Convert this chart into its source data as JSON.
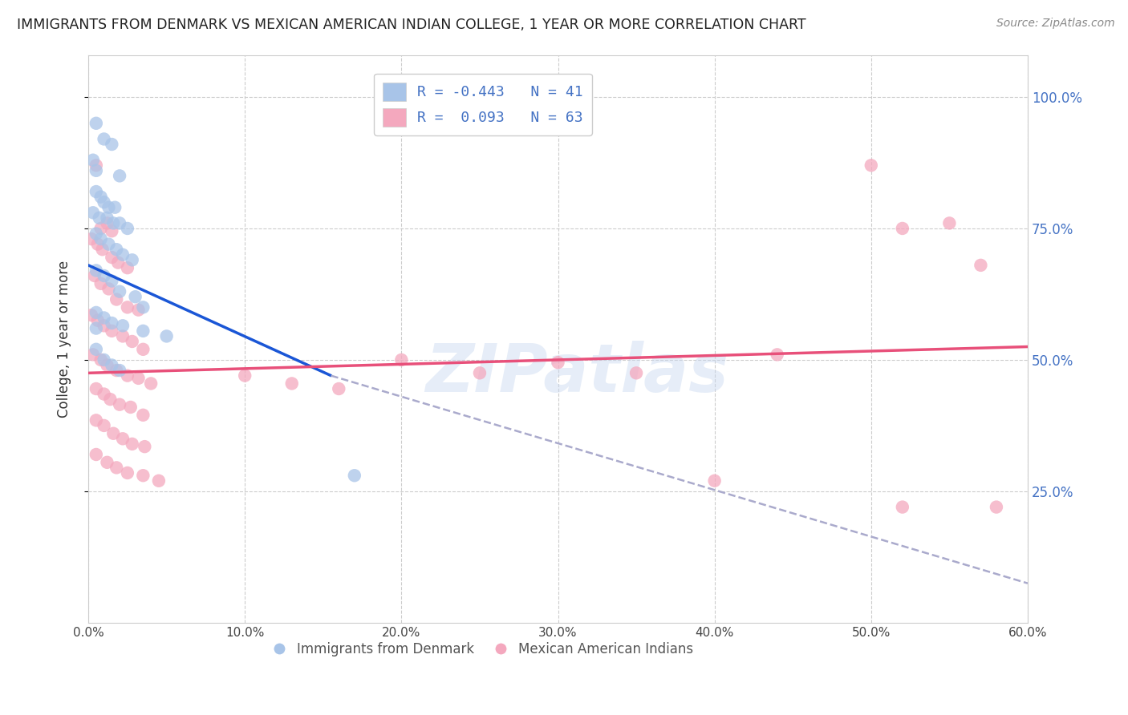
{
  "title": "IMMIGRANTS FROM DENMARK VS MEXICAN AMERICAN INDIAN COLLEGE, 1 YEAR OR MORE CORRELATION CHART",
  "source": "Source: ZipAtlas.com",
  "ylabel": "College, 1 year or more",
  "x_tick_labels": [
    "0.0%",
    "10.0%",
    "20.0%",
    "30.0%",
    "40.0%",
    "50.0%",
    "60.0%"
  ],
  "x_ticks": [
    0.0,
    0.1,
    0.2,
    0.3,
    0.4,
    0.5,
    0.6
  ],
  "y_tick_labels": [
    "100.0%",
    "75.0%",
    "50.0%",
    "25.0%"
  ],
  "y_ticks": [
    1.0,
    0.75,
    0.5,
    0.25
  ],
  "xlim": [
    0.0,
    0.6
  ],
  "ylim": [
    0.0,
    1.08
  ],
  "blue_color": "#a8c4e8",
  "pink_color": "#f4a8be",
  "blue_line_color": "#1a56d6",
  "pink_line_color": "#e8507a",
  "blue_scatter": [
    [
      0.005,
      0.95
    ],
    [
      0.01,
      0.92
    ],
    [
      0.015,
      0.91
    ],
    [
      0.003,
      0.88
    ],
    [
      0.005,
      0.86
    ],
    [
      0.02,
      0.85
    ],
    [
      0.005,
      0.82
    ],
    [
      0.008,
      0.81
    ],
    [
      0.01,
      0.8
    ],
    [
      0.013,
      0.79
    ],
    [
      0.017,
      0.79
    ],
    [
      0.003,
      0.78
    ],
    [
      0.007,
      0.77
    ],
    [
      0.012,
      0.77
    ],
    [
      0.016,
      0.76
    ],
    [
      0.02,
      0.76
    ],
    [
      0.025,
      0.75
    ],
    [
      0.005,
      0.74
    ],
    [
      0.008,
      0.73
    ],
    [
      0.013,
      0.72
    ],
    [
      0.018,
      0.71
    ],
    [
      0.022,
      0.7
    ],
    [
      0.028,
      0.69
    ],
    [
      0.005,
      0.67
    ],
    [
      0.01,
      0.66
    ],
    [
      0.015,
      0.65
    ],
    [
      0.02,
      0.63
    ],
    [
      0.03,
      0.62
    ],
    [
      0.035,
      0.6
    ],
    [
      0.005,
      0.59
    ],
    [
      0.01,
      0.58
    ],
    [
      0.015,
      0.57
    ],
    [
      0.022,
      0.565
    ],
    [
      0.035,
      0.555
    ],
    [
      0.05,
      0.545
    ],
    [
      0.005,
      0.52
    ],
    [
      0.01,
      0.5
    ],
    [
      0.015,
      0.49
    ],
    [
      0.02,
      0.48
    ],
    [
      0.17,
      0.28
    ],
    [
      0.005,
      0.56
    ]
  ],
  "pink_scatter": [
    [
      0.005,
      0.87
    ],
    [
      0.008,
      0.75
    ],
    [
      0.012,
      0.76
    ],
    [
      0.015,
      0.745
    ],
    [
      0.002,
      0.73
    ],
    [
      0.006,
      0.72
    ],
    [
      0.009,
      0.71
    ],
    [
      0.015,
      0.695
    ],
    [
      0.019,
      0.685
    ],
    [
      0.025,
      0.675
    ],
    [
      0.004,
      0.66
    ],
    [
      0.008,
      0.645
    ],
    [
      0.013,
      0.635
    ],
    [
      0.018,
      0.615
    ],
    [
      0.025,
      0.6
    ],
    [
      0.032,
      0.595
    ],
    [
      0.002,
      0.585
    ],
    [
      0.006,
      0.575
    ],
    [
      0.01,
      0.565
    ],
    [
      0.015,
      0.555
    ],
    [
      0.022,
      0.545
    ],
    [
      0.028,
      0.535
    ],
    [
      0.035,
      0.52
    ],
    [
      0.003,
      0.51
    ],
    [
      0.008,
      0.5
    ],
    [
      0.012,
      0.49
    ],
    [
      0.018,
      0.48
    ],
    [
      0.025,
      0.47
    ],
    [
      0.032,
      0.465
    ],
    [
      0.04,
      0.455
    ],
    [
      0.005,
      0.445
    ],
    [
      0.01,
      0.435
    ],
    [
      0.014,
      0.425
    ],
    [
      0.02,
      0.415
    ],
    [
      0.027,
      0.41
    ],
    [
      0.035,
      0.395
    ],
    [
      0.005,
      0.385
    ],
    [
      0.01,
      0.375
    ],
    [
      0.016,
      0.36
    ],
    [
      0.022,
      0.35
    ],
    [
      0.028,
      0.34
    ],
    [
      0.036,
      0.335
    ],
    [
      0.005,
      0.32
    ],
    [
      0.012,
      0.305
    ],
    [
      0.018,
      0.295
    ],
    [
      0.025,
      0.285
    ],
    [
      0.035,
      0.28
    ],
    [
      0.045,
      0.27
    ],
    [
      0.1,
      0.47
    ],
    [
      0.13,
      0.455
    ],
    [
      0.16,
      0.445
    ],
    [
      0.2,
      0.5
    ],
    [
      0.25,
      0.475
    ],
    [
      0.3,
      0.495
    ],
    [
      0.35,
      0.475
    ],
    [
      0.4,
      0.27
    ],
    [
      0.44,
      0.51
    ],
    [
      0.5,
      0.87
    ],
    [
      0.52,
      0.75
    ],
    [
      0.55,
      0.76
    ],
    [
      0.57,
      0.68
    ],
    [
      0.52,
      0.22
    ],
    [
      0.58,
      0.22
    ]
  ],
  "blue_line": {
    "x0": 0.0,
    "y0": 0.68,
    "x1": 0.155,
    "y1": 0.47
  },
  "blue_line_dashed": {
    "x0": 0.155,
    "y0": 0.47,
    "x1": 0.6,
    "y1": 0.075
  },
  "pink_line": {
    "x0": 0.0,
    "y0": 0.475,
    "x1": 0.6,
    "y1": 0.525
  },
  "watermark": "ZIPatlas",
  "legend_blue_label": "R = -0.443   N = 41",
  "legend_pink_label": "R =  0.093   N = 63",
  "bottom_legend_blue": "Immigrants from Denmark",
  "bottom_legend_pink": "Mexican American Indians"
}
